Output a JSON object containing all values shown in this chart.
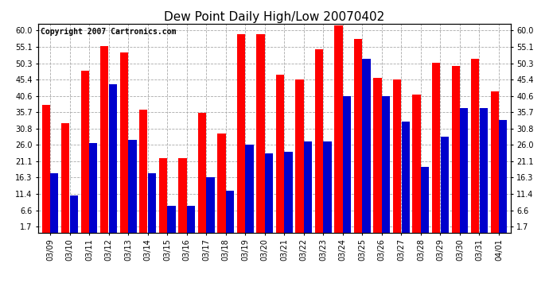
{
  "title": "Dew Point Daily High/Low 20070402",
  "copyright": "Copyright 2007 Cartronics.com",
  "dates": [
    "03/09",
    "03/10",
    "03/11",
    "03/12",
    "03/13",
    "03/14",
    "03/15",
    "03/16",
    "03/17",
    "03/18",
    "03/19",
    "03/20",
    "03/21",
    "03/22",
    "03/23",
    "03/24",
    "03/25",
    "03/26",
    "03/27",
    "03/28",
    "03/29",
    "03/30",
    "03/31",
    "04/01"
  ],
  "highs": [
    38.0,
    32.5,
    48.0,
    55.5,
    53.5,
    36.5,
    22.0,
    22.0,
    35.5,
    29.5,
    59.0,
    59.0,
    47.0,
    45.5,
    54.5,
    61.5,
    57.5,
    46.0,
    45.5,
    41.0,
    50.5,
    49.5,
    51.5,
    42.0
  ],
  "lows": [
    17.5,
    11.0,
    26.5,
    44.0,
    27.5,
    17.5,
    8.0,
    8.0,
    16.5,
    12.5,
    26.0,
    23.5,
    24.0,
    27.0,
    27.0,
    40.5,
    51.5,
    40.5,
    33.0,
    19.5,
    28.5,
    37.0,
    37.0,
    33.5
  ],
  "high_color": "#ff0000",
  "low_color": "#0000cc",
  "bg_color": "#ffffff",
  "plot_bg_color": "#ffffff",
  "grid_color": "#aaaaaa",
  "yticks": [
    1.7,
    6.6,
    11.4,
    16.3,
    21.1,
    26.0,
    30.8,
    35.7,
    40.6,
    45.4,
    50.3,
    55.1,
    60.0
  ],
  "ymin": 0,
  "ymax": 62,
  "title_fontsize": 11,
  "copyright_fontsize": 7,
  "tick_fontsize": 7
}
